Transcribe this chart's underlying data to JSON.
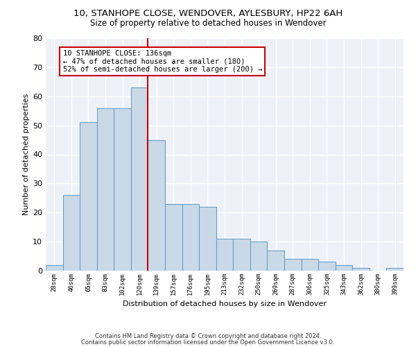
{
  "title1": "10, STANHOPE CLOSE, WENDOVER, AYLESBURY, HP22 6AH",
  "title2": "Size of property relative to detached houses in Wendover",
  "xlabel": "Distribution of detached houses by size in Wendover",
  "ylabel": "Number of detached properties",
  "categories": [
    "28sqm",
    "46sqm",
    "65sqm",
    "83sqm",
    "102sqm",
    "120sqm",
    "139sqm",
    "157sqm",
    "176sqm",
    "195sqm",
    "213sqm",
    "232sqm",
    "250sqm",
    "269sqm",
    "287sqm",
    "306sqm",
    "325sqm",
    "343sqm",
    "362sqm",
    "380sqm",
    "399sqm"
  ],
  "values": [
    2,
    26,
    51,
    56,
    56,
    63,
    45,
    23,
    23,
    22,
    11,
    11,
    10,
    7,
    4,
    4,
    3,
    2,
    1,
    0,
    1
  ],
  "bar_color": "#c9d9e8",
  "bar_edge_color": "#6aa0c7",
  "vline_color": "#cc0000",
  "vline_index": 6,
  "annotation_text": "10 STANHOPE CLOSE: 136sqm\n← 47% of detached houses are smaller (180)\n52% of semi-detached houses are larger (200) →",
  "annotation_box_color": "#ffffff",
  "annotation_box_edge_color": "#cc0000",
  "ylim": [
    0,
    80
  ],
  "yticks": [
    0,
    10,
    20,
    30,
    40,
    50,
    60,
    70,
    80
  ],
  "bg_color": "#eef2f8",
  "grid_color": "#ffffff",
  "footer1": "Contains HM Land Registry data © Crown copyright and database right 2024.",
  "footer2": "Contains public sector information licensed under the Open Government Licence v3.0."
}
